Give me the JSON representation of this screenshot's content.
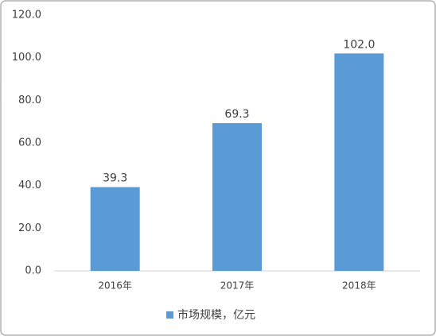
{
  "chart_data": {
    "type": "bar",
    "categories": [
      "2016年",
      "2017年",
      "2018年"
    ],
    "series": [
      {
        "name": "市场规模，亿元",
        "color": "#5b9bd5",
        "values": [
          39.3,
          69.3,
          102.0
        ],
        "value_labels": [
          "39.3",
          "69.3",
          "102.0"
        ]
      }
    ],
    "ylim": [
      0,
      120
    ],
    "yticks": [
      {
        "value": 0,
        "label": "0.0"
      },
      {
        "value": 20,
        "label": "20.0"
      },
      {
        "value": 40,
        "label": "40.0"
      },
      {
        "value": 60,
        "label": "60.0"
      },
      {
        "value": 80,
        "label": "80.0"
      },
      {
        "value": 100,
        "label": "100.0"
      },
      {
        "value": 120,
        "label": "120.0"
      }
    ],
    "grid": false,
    "legend": "bottom"
  }
}
